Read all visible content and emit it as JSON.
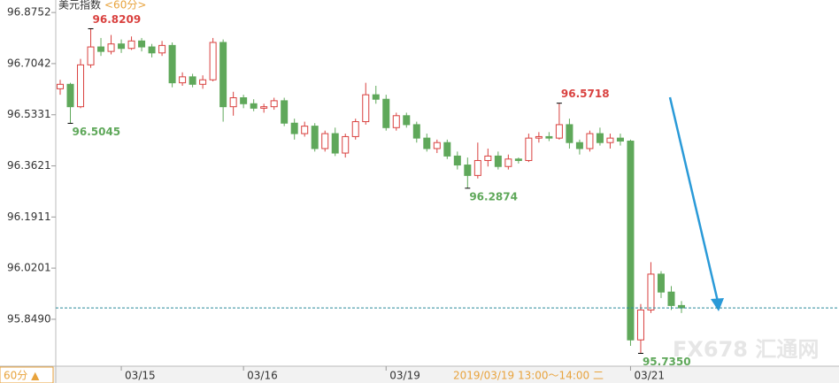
{
  "chart_data": {
    "type": "candlestick",
    "title": "美元指数",
    "period": "<60分>",
    "period_button": "60分 ▲",
    "cursor_label": "2019/03/19 13:00～14:00 二",
    "watermark": "FX678 汇通网",
    "categories": [
      null,
      null,
      null,
      null,
      null,
      null,
      "03/15",
      null,
      null,
      null,
      null,
      null,
      null,
      null,
      null,
      null,
      null,
      null,
      "03/16",
      null,
      null,
      null,
      null,
      null,
      null,
      null,
      null,
      null,
      null,
      null,
      null,
      null,
      "03/19",
      null,
      null,
      null,
      null,
      null,
      null,
      null,
      null,
      null,
      null,
      null,
      null,
      null,
      null,
      null,
      null,
      null,
      null,
      null,
      null,
      null,
      null,
      null,
      "03/21",
      null,
      null,
      null,
      null,
      null
    ],
    "open": [
      96.62,
      96.635,
      96.56,
      96.7,
      96.76,
      96.745,
      96.77,
      96.755,
      96.78,
      96.76,
      96.74,
      96.765,
      96.64,
      96.66,
      96.635,
      96.65,
      96.775,
      96.56,
      96.59,
      96.57,
      96.555,
      96.56,
      96.58,
      96.505,
      96.47,
      96.495,
      96.42,
      96.47,
      96.405,
      96.46,
      96.51,
      96.6,
      96.585,
      96.49,
      96.53,
      96.5,
      96.455,
      96.42,
      96.44,
      96.395,
      96.365,
      96.33,
      96.38,
      96.395,
      96.36,
      96.385,
      96.38,
      96.455,
      96.46,
      96.455,
      96.5,
      96.44,
      96.42,
      96.47,
      96.44,
      96.455,
      96.445,
      95.78,
      95.88,
      96.0,
      95.94,
      95.895
    ],
    "high": [
      96.65,
      96.64,
      96.72,
      96.8209,
      96.79,
      96.8,
      96.785,
      96.795,
      96.79,
      96.77,
      96.78,
      96.775,
      96.675,
      96.67,
      96.665,
      96.79,
      96.785,
      96.61,
      96.6,
      96.585,
      96.57,
      96.59,
      96.59,
      96.52,
      96.51,
      96.505,
      96.48,
      96.49,
      96.47,
      96.52,
      96.64,
      96.63,
      96.6,
      96.54,
      96.54,
      96.51,
      96.47,
      96.45,
      96.45,
      96.41,
      96.39,
      96.44,
      96.42,
      96.41,
      96.4,
      96.39,
      96.47,
      96.475,
      96.475,
      96.5718,
      96.52,
      96.45,
      96.48,
      96.49,
      96.47,
      96.47,
      96.45,
      95.9,
      96.04,
      96.01,
      95.96,
      95.91
    ],
    "low": [
      96.6,
      96.5045,
      96.555,
      96.69,
      96.73,
      96.735,
      96.74,
      96.75,
      96.745,
      96.725,
      96.73,
      96.625,
      96.63,
      96.625,
      96.62,
      96.645,
      96.51,
      96.53,
      96.555,
      96.545,
      96.54,
      96.55,
      96.495,
      96.45,
      96.46,
      96.41,
      96.41,
      96.395,
      96.39,
      96.45,
      96.5,
      96.57,
      96.48,
      96.48,
      96.49,
      96.44,
      96.41,
      96.405,
      96.385,
      96.35,
      96.2874,
      96.32,
      96.36,
      96.35,
      96.35,
      96.37,
      96.375,
      96.44,
      96.445,
      96.45,
      96.42,
      96.4,
      96.41,
      96.43,
      96.42,
      96.43,
      95.76,
      95.735,
      95.87,
      95.92,
      95.88,
      95.87
    ],
    "close": [
      96.635,
      96.56,
      96.7,
      96.76,
      96.745,
      96.77,
      96.755,
      96.78,
      96.76,
      96.74,
      96.765,
      96.64,
      96.66,
      96.635,
      96.65,
      96.775,
      96.56,
      96.59,
      96.57,
      96.555,
      96.56,
      96.58,
      96.505,
      96.47,
      96.495,
      96.42,
      96.47,
      96.405,
      96.46,
      96.51,
      96.6,
      96.585,
      96.49,
      96.53,
      96.5,
      96.455,
      96.42,
      96.44,
      96.395,
      96.365,
      96.33,
      96.38,
      96.395,
      96.36,
      96.385,
      96.38,
      96.455,
      96.46,
      96.455,
      96.5,
      96.44,
      96.42,
      96.47,
      96.44,
      96.455,
      96.445,
      95.78,
      95.88,
      96.0,
      95.94,
      95.895,
      95.887
    ],
    "up_color": "#d9413f",
    "down_color": "#5fa85a",
    "annotations": [
      {
        "label": "96.8209",
        "value": 96.8209
      },
      {
        "label": "96.5045",
        "value": 96.5045
      },
      {
        "label": "96.2874",
        "value": 96.2874
      },
      {
        "label": "96.5718",
        "value": 96.5718
      },
      {
        "label": "95.7350",
        "value": 95.735
      }
    ],
    "ylim": [
      95.692,
      96.917
    ],
    "yticks": [
      96.8752,
      96.7042,
      96.5331,
      96.3621,
      96.1911,
      96.0201,
      {
        "value": 95.849,
        "label": "95.8490"
      }
    ]
  }
}
